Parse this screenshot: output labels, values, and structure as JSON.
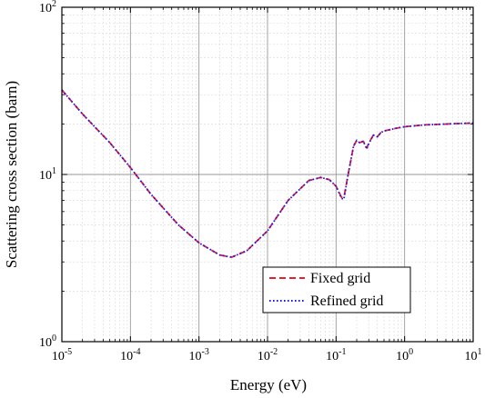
{
  "chart_data": {
    "type": "line",
    "title": "",
    "xlabel": "Energy (eV)",
    "ylabel": "Scattering cross section (barn)",
    "x_scale": "log",
    "y_scale": "log",
    "xlim": [
      1e-05,
      10
    ],
    "ylim": [
      1,
      100
    ],
    "grid": true,
    "legend_position": "bottom-right",
    "x_ticks": [
      {
        "mant": "10",
        "exp": "-5"
      },
      {
        "mant": "10",
        "exp": "-4"
      },
      {
        "mant": "10",
        "exp": "-3"
      },
      {
        "mant": "10",
        "exp": "-2"
      },
      {
        "mant": "10",
        "exp": "-1"
      },
      {
        "mant": "10",
        "exp": "0"
      },
      {
        "mant": "10",
        "exp": "1"
      }
    ],
    "y_ticks": [
      {
        "mant": "10",
        "exp": "0"
      },
      {
        "mant": "10",
        "exp": "1"
      },
      {
        "mant": "10",
        "exp": "2"
      }
    ],
    "x": [
      1e-05,
      2e-05,
      5e-05,
      0.0001,
      0.0002,
      0.0005,
      0.001,
      0.002,
      0.003,
      0.005,
      0.01,
      0.02,
      0.04,
      0.06,
      0.08,
      0.1,
      0.12,
      0.13,
      0.15,
      0.18,
      0.2,
      0.22,
      0.25,
      0.28,
      0.3,
      0.35,
      0.4,
      0.45,
      0.5,
      0.6,
      0.8,
      1,
      2,
      5,
      10
    ],
    "series": [
      {
        "name": "Fixed grid",
        "color": "#e8202a",
        "dash": "dashed",
        "values": [
          32,
          23,
          15.5,
          11,
          7.6,
          5,
          3.9,
          3.3,
          3.2,
          3.5,
          4.6,
          7,
          9.2,
          9.6,
          9.3,
          8.5,
          7.3,
          7.3,
          10,
          14.8,
          16,
          15.5,
          15.8,
          14.4,
          15.4,
          17.2,
          16.8,
          17.8,
          18.2,
          18.5,
          19,
          19.3,
          19.8,
          20.1,
          20.3
        ]
      },
      {
        "name": "Refined grid",
        "color": "#1a1aee",
        "dash": "dotted",
        "values": [
          32,
          23,
          15.5,
          11,
          7.6,
          5,
          3.9,
          3.3,
          3.2,
          3.5,
          4.6,
          7,
          9.2,
          9.6,
          9.3,
          8.5,
          7.2,
          7.1,
          10,
          14.8,
          16,
          15.5,
          15.8,
          14.2,
          15.3,
          17.2,
          16.8,
          17.8,
          18.2,
          18.5,
          19,
          19.3,
          19.8,
          20.1,
          20.3
        ]
      }
    ]
  }
}
